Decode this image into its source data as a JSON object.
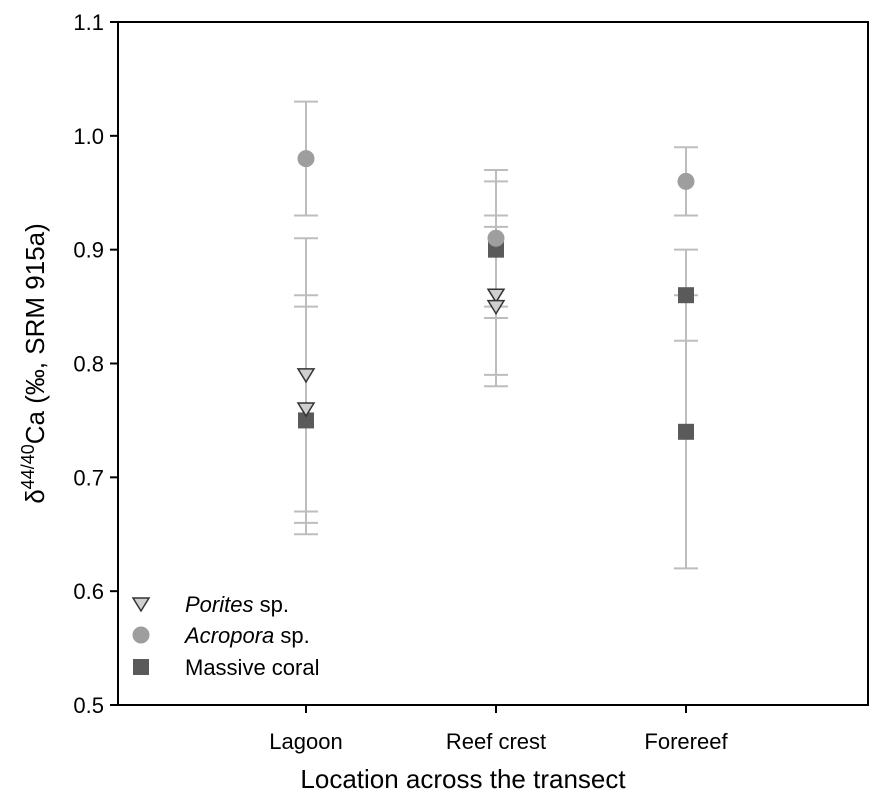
{
  "chart_data": {
    "type": "scatter",
    "xlabel": "Location across the transect",
    "ylabel": {
      "prefix": "δ",
      "superscript": "44/40",
      "suffix": "Ca (‰, SRM 915a)"
    },
    "categories": [
      "Lagoon",
      "Reef crest",
      "Forereef"
    ],
    "ylim": [
      0.5,
      1.1
    ],
    "yticks": [
      "0.5",
      "0.6",
      "0.7",
      "0.8",
      "0.9",
      "1.0",
      "1.1"
    ],
    "grid": false,
    "legend_position": "bottom-left",
    "series": [
      {
        "name_italic": "Porites",
        "name_rest": " sp.",
        "marker": "triangle-down",
        "color": "#cfcfcf",
        "stroke": "#333333",
        "points": [
          {
            "category": "Lagoon",
            "y": 0.79,
            "yerr_low": 0.67,
            "yerr_high": 0.91
          },
          {
            "category": "Lagoon",
            "y": 0.76,
            "yerr_low": 0.66,
            "yerr_high": 0.86
          },
          {
            "category": "Reef crest",
            "y": 0.86,
            "yerr_low": 0.78,
            "yerr_high": 0.93
          },
          {
            "category": "Reef crest",
            "y": 0.85,
            "yerr_low": 0.79,
            "yerr_high": 0.92
          }
        ]
      },
      {
        "name_italic": "Acropora",
        "name_rest": " sp.",
        "marker": "circle",
        "color": "#9e9e9e",
        "stroke": "#9e9e9e",
        "points": [
          {
            "category": "Lagoon",
            "y": 0.98,
            "yerr_low": 0.93,
            "yerr_high": 1.03
          },
          {
            "category": "Reef crest",
            "y": 0.91,
            "yerr_low": 0.85,
            "yerr_high": 0.97
          },
          {
            "category": "Forereef",
            "y": 0.96,
            "yerr_low": 0.93,
            "yerr_high": 0.99
          }
        ]
      },
      {
        "name_italic": "",
        "name_rest": "Massive coral",
        "marker": "square",
        "color": "#5a5a5a",
        "stroke": "#5a5a5a",
        "points": [
          {
            "category": "Lagoon",
            "y": 0.75,
            "yerr_low": 0.65,
            "yerr_high": 0.85
          },
          {
            "category": "Reef crest",
            "y": 0.9,
            "yerr_low": 0.84,
            "yerr_high": 0.96
          },
          {
            "category": "Forereef",
            "y": 0.86,
            "yerr_low": 0.82,
            "yerr_high": 0.9
          },
          {
            "category": "Forereef",
            "y": 0.74,
            "yerr_low": 0.62,
            "yerr_high": 0.86
          }
        ]
      }
    ],
    "errorbar_color": "#bdbdbd"
  }
}
